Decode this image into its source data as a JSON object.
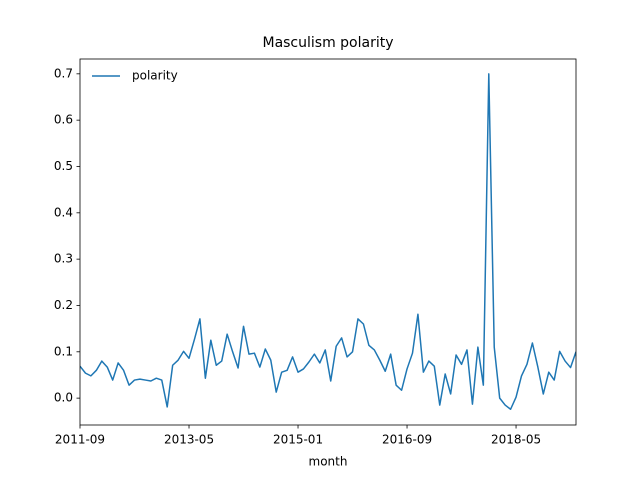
{
  "chart_data": {
    "type": "line",
    "title": "Masculism polarity",
    "x_label": "month",
    "x": [
      "2011-09",
      "2011-10",
      "2011-11",
      "2011-12",
      "2012-01",
      "2012-02",
      "2012-03",
      "2012-04",
      "2012-05",
      "2012-06",
      "2012-07",
      "2012-08",
      "2012-09",
      "2012-10",
      "2012-11",
      "2012-12",
      "2013-01",
      "2013-02",
      "2013-03",
      "2013-04",
      "2013-05",
      "2013-06",
      "2013-07",
      "2013-08",
      "2013-09",
      "2013-10",
      "2013-11",
      "2013-12",
      "2014-01",
      "2014-02",
      "2014-03",
      "2014-04",
      "2014-05",
      "2014-06",
      "2014-07",
      "2014-08",
      "2014-09",
      "2014-10",
      "2014-11",
      "2014-12",
      "2015-01",
      "2015-02",
      "2015-03",
      "2015-04",
      "2015-05",
      "2015-06",
      "2015-07",
      "2015-08",
      "2015-09",
      "2015-10",
      "2015-11",
      "2015-12",
      "2016-01",
      "2016-02",
      "2016-03",
      "2016-04",
      "2016-05",
      "2016-06",
      "2016-07",
      "2016-08",
      "2016-09",
      "2016-10",
      "2016-11",
      "2016-12",
      "2017-01",
      "2017-02",
      "2017-03",
      "2017-04",
      "2017-05",
      "2017-06",
      "2017-07",
      "2017-08",
      "2017-09",
      "2017-10",
      "2017-11",
      "2017-12",
      "2018-01",
      "2018-02",
      "2018-03",
      "2018-04",
      "2018-05",
      "2018-06",
      "2018-07",
      "2018-08",
      "2018-09",
      "2018-10",
      "2018-11",
      "2018-12",
      "2019-01",
      "2019-02",
      "2019-03",
      "2019-04"
    ],
    "series": [
      {
        "name": "polarity",
        "color": "#1f77b4",
        "values": [
          0.069,
          0.054,
          0.048,
          0.06,
          0.08,
          0.067,
          0.039,
          0.076,
          0.06,
          0.028,
          0.039,
          0.041,
          0.039,
          0.037,
          0.043,
          0.039,
          -0.019,
          0.071,
          0.082,
          0.101,
          0.086,
          0.127,
          0.171,
          0.043,
          0.125,
          0.071,
          0.08,
          0.138,
          0.1,
          0.065,
          0.155,
          0.095,
          0.097,
          0.067,
          0.106,
          0.082,
          0.013,
          0.056,
          0.06,
          0.089,
          0.056,
          0.063,
          0.078,
          0.095,
          0.076,
          0.104,
          0.037,
          0.112,
          0.13,
          0.089,
          0.1,
          0.171,
          0.16,
          0.114,
          0.104,
          0.082,
          0.058,
          0.095,
          0.028,
          0.017,
          0.063,
          0.097,
          0.181,
          0.056,
          0.08,
          0.069,
          -0.015,
          0.052,
          0.009,
          0.093,
          0.073,
          0.104,
          -0.013,
          0.11,
          0.028,
          0.7,
          0.11,
          0.0,
          -0.015,
          -0.024,
          0.002,
          0.048,
          0.073,
          0.119,
          0.067,
          0.009,
          0.056,
          0.039,
          0.101,
          0.08,
          0.066,
          0.1
        ]
      }
    ],
    "xlim": [
      "2011-09",
      "2019-04"
    ],
    "xticks": [
      "2011-09",
      "2013-05",
      "2015-01",
      "2016-09",
      "2018-05"
    ],
    "ylim": [
      -0.058,
      0.732
    ],
    "yticks": [
      {
        "value": 0,
        "label": "0.0"
      },
      0.1,
      0.2,
      0.3,
      0.4,
      0.5,
      0.6,
      0.7
    ],
    "legend": "upper left",
    "grid": false
  }
}
